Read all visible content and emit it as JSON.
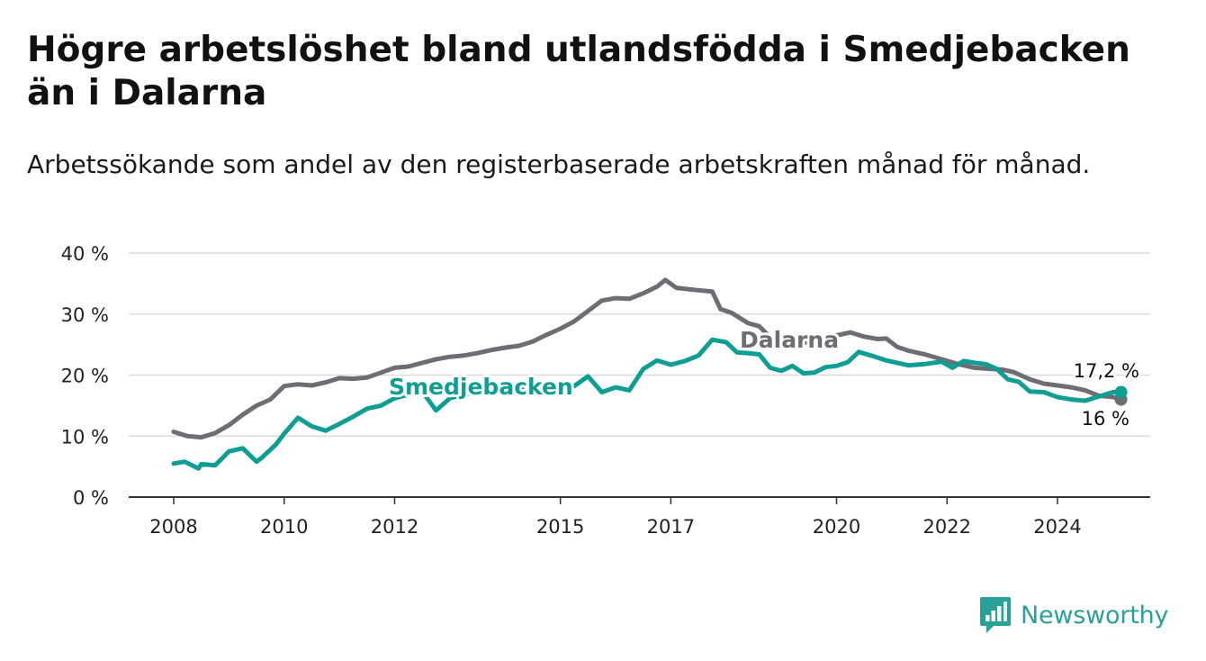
{
  "title": "Högre arbetslöshet bland utlandsfödda i Smedjebacken än i Dalarna",
  "subtitle": "Arbetssökande som andel av den registerbaserade arbetskraften månad för månad.",
  "brand": {
    "name": "Newsworthy",
    "icon": "newsworthy-logo-icon",
    "color": "#2aa198"
  },
  "colors": {
    "smedjebacken": "#0f9e94",
    "dalarna": "#6e6d73",
    "grid": "#dcdcdc",
    "axis": "#333333"
  },
  "chart_data": {
    "type": "line",
    "ylim": [
      0,
      40
    ],
    "yticks": [
      0,
      10,
      20,
      30,
      40
    ],
    "ytick_labels": [
      "0 %",
      "10 %",
      "20 %",
      "30 %",
      "40 %"
    ],
    "xlim": [
      2008,
      2025.7
    ],
    "xticks": [
      2008,
      2010,
      2012,
      2015,
      2017,
      2020,
      2022,
      2024
    ],
    "xtick_labels": [
      "2008",
      "2010",
      "2012",
      "2015",
      "2017",
      "2020",
      "2022",
      "2024"
    ],
    "grid": true,
    "series": [
      {
        "name": "Dalarna",
        "color": "#6e6d73",
        "end_label": "16 %",
        "x": [
          2008.0,
          2008.25,
          2008.5,
          2008.75,
          2009.0,
          2009.25,
          2009.5,
          2009.75,
          2010.0,
          2010.25,
          2010.5,
          2010.75,
          2011.0,
          2011.25,
          2011.5,
          2011.75,
          2012.0,
          2012.25,
          2012.5,
          2012.75,
          2013.0,
          2013.25,
          2013.5,
          2013.75,
          2014.0,
          2014.25,
          2014.5,
          2014.75,
          2015.0,
          2015.25,
          2015.5,
          2015.75,
          2016.0,
          2016.25,
          2016.5,
          2016.75,
          2016.9,
          2017.1,
          2017.3,
          2017.5,
          2017.75,
          2017.9,
          2018.1,
          2018.4,
          2018.6,
          2018.85,
          2019.1,
          2019.4,
          2019.7,
          2020.0,
          2020.25,
          2020.5,
          2020.75,
          2020.9,
          2021.1,
          2021.3,
          2021.6,
          2021.9,
          2022.2,
          2022.5,
          2022.8,
          2023.0,
          2023.2,
          2023.5,
          2023.75,
          2024.0,
          2024.25,
          2024.5,
          2024.75,
          2025.0,
          2025.15
        ],
        "y": [
          10.7,
          10.0,
          9.8,
          10.5,
          11.8,
          13.5,
          15.0,
          16.0,
          18.2,
          18.5,
          18.3,
          18.8,
          19.5,
          19.4,
          19.6,
          20.4,
          21.2,
          21.4,
          22.0,
          22.6,
          23.0,
          23.2,
          23.6,
          24.1,
          24.5,
          24.8,
          25.5,
          26.6,
          27.6,
          28.8,
          30.5,
          32.2,
          32.6,
          32.5,
          33.4,
          34.5,
          35.6,
          34.3,
          34.1,
          33.9,
          33.7,
          30.8,
          30.2,
          28.5,
          28.0,
          25.7,
          24.5,
          25.3,
          25.7,
          26.5,
          27.0,
          26.3,
          25.9,
          26.0,
          24.6,
          24.0,
          23.4,
          22.6,
          21.8,
          21.2,
          21.0,
          20.9,
          20.5,
          19.3,
          18.6,
          18.3,
          18.0,
          17.5,
          16.6,
          16.4,
          16.0
        ]
      },
      {
        "name": "Smedjebacken",
        "color": "#0f9e94",
        "end_label": "17,2 %",
        "x": [
          2008.0,
          2008.2,
          2008.45,
          2008.5,
          2008.75,
          2009.0,
          2009.25,
          2009.5,
          2009.6,
          2009.85,
          2010.0,
          2010.25,
          2010.5,
          2010.75,
          2011.0,
          2011.25,
          2011.5,
          2011.75,
          2012.0,
          2012.25,
          2012.5,
          2012.75,
          2013.0,
          2013.25,
          2013.5,
          2013.75,
          2014.0,
          2014.25,
          2014.5,
          2014.75,
          2015.0,
          2015.25,
          2015.5,
          2015.75,
          2016.0,
          2016.25,
          2016.5,
          2016.75,
          2017.0,
          2017.25,
          2017.5,
          2017.75,
          2018.0,
          2018.2,
          2018.4,
          2018.6,
          2018.8,
          2019.0,
          2019.2,
          2019.4,
          2019.6,
          2019.8,
          2020.0,
          2020.2,
          2020.4,
          2020.7,
          2020.9,
          2021.1,
          2021.3,
          2021.6,
          2021.9,
          2022.1,
          2022.3,
          2022.5,
          2022.7,
          2022.9,
          2023.1,
          2023.3,
          2023.5,
          2023.75,
          2024.0,
          2024.25,
          2024.5,
          2024.75,
          2025.0,
          2025.15
        ],
        "y": [
          5.5,
          5.8,
          4.7,
          5.4,
          5.2,
          7.5,
          8.0,
          5.8,
          6.5,
          8.6,
          10.4,
          13.0,
          11.6,
          10.9,
          12.0,
          13.2,
          14.5,
          15.0,
          16.2,
          16.8,
          17.3,
          14.2,
          16.2,
          16.8,
          17.3,
          17.6,
          17.4,
          17.6,
          17.8,
          17.9,
          18.0,
          18.2,
          19.8,
          17.2,
          18.0,
          17.5,
          21.0,
          22.4,
          21.7,
          22.3,
          23.2,
          25.8,
          25.4,
          23.7,
          23.6,
          23.4,
          21.2,
          20.7,
          21.5,
          20.3,
          20.4,
          21.3,
          21.5,
          22.1,
          23.8,
          23.0,
          22.4,
          22.0,
          21.6,
          21.8,
          22.2,
          21.2,
          22.3,
          22.0,
          21.8,
          21.0,
          19.3,
          18.9,
          17.3,
          17.2,
          16.4,
          16.0,
          15.8,
          16.5,
          17.2,
          17.2
        ]
      }
    ]
  }
}
